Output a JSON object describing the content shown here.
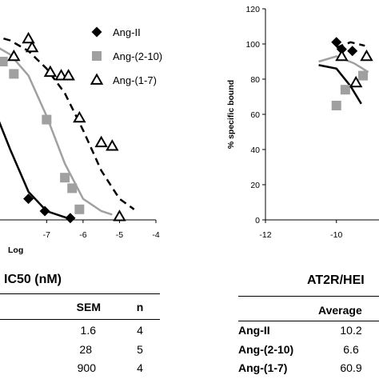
{
  "chart_data": [
    {
      "type": "scatter",
      "xlabel": "Log",
      "ylabel": "",
      "xlim": [
        -8.5,
        -4
      ],
      "ylim": [
        0,
        120
      ],
      "x_ticks": [
        "-7",
        "-6",
        "-5",
        "-4"
      ],
      "grid": false,
      "legend_position": "top-right",
      "series": [
        {
          "name": "Ang-II",
          "marker": "diamond",
          "color": "#000000",
          "line": "solid",
          "line_color": "#000000",
          "points": [
            [
              -7.5,
              12
            ],
            [
              -7.05,
              5
            ],
            [
              -6.35,
              1
            ]
          ],
          "curve": [
            [
              -8.5,
              66
            ],
            [
              -8,
              40
            ],
            [
              -7.5,
              16
            ],
            [
              -7,
              5
            ],
            [
              -6.5,
              1.5
            ],
            [
              -6.3,
              0.5
            ]
          ]
        },
        {
          "name": "Ang-(2-10)",
          "marker": "square",
          "color": "#a0a0a0",
          "line": "solid",
          "line_color": "#a0a0a0",
          "points": [
            [
              -8.2,
              90
            ],
            [
              -7.9,
              83
            ],
            [
              -7.0,
              57
            ],
            [
              -6.5,
              24
            ],
            [
              -6.3,
              18
            ],
            [
              -6.1,
              6
            ]
          ],
          "curve": [
            [
              -8.5,
              100
            ],
            [
              -8,
              94
            ],
            [
              -7.5,
              82
            ],
            [
              -7,
              59
            ],
            [
              -6.5,
              32
            ],
            [
              -6,
              12
            ],
            [
              -5.5,
              5
            ],
            [
              -5.2,
              3
            ]
          ]
        },
        {
          "name": "Ang-(1-7)",
          "marker": "triangle",
          "color": "#000000",
          "line": "dashed",
          "line_color": "#000000",
          "points": [
            [
              -7.9,
              93
            ],
            [
              -7.5,
              103
            ],
            [
              -7.4,
              98
            ],
            [
              -6.9,
              84
            ],
            [
              -6.6,
              82
            ],
            [
              -6.4,
              82
            ],
            [
              -6.1,
              58
            ],
            [
              -5.5,
              44
            ],
            [
              -5.2,
              42
            ],
            [
              -5.0,
              2
            ]
          ],
          "curve": [
            [
              -8.5,
              105
            ],
            [
              -8,
              102
            ],
            [
              -7.5,
              96
            ],
            [
              -7,
              86
            ],
            [
              -6.5,
              72
            ],
            [
              -6,
              51
            ],
            [
              -5.5,
              28
            ],
            [
              -5,
              12
            ],
            [
              -4.6,
              6
            ]
          ]
        }
      ]
    },
    {
      "type": "scatter",
      "xlabel": "",
      "ylabel": "% specific bound",
      "xlim": [
        -12,
        -8.8
      ],
      "ylim": [
        0,
        120
      ],
      "x_ticks": [
        "-12",
        "-10"
      ],
      "y_ticks": [
        "0",
        "20",
        "40",
        "60",
        "80",
        "100",
        "120"
      ],
      "grid": false,
      "series": [
        {
          "name": "Ang-II",
          "marker": "diamond",
          "color": "#000000",
          "line": "solid",
          "line_color": "#000000",
          "points": [
            [
              -10.0,
              101
            ],
            [
              -9.85,
              97
            ],
            [
              -9.55,
              96
            ]
          ],
          "curve": [
            [
              -10.5,
              88
            ],
            [
              -10,
              86
            ],
            [
              -9.6,
              76
            ],
            [
              -9.3,
              66
            ]
          ]
        },
        {
          "name": "Ang-(2-10)",
          "marker": "square",
          "color": "#a0a0a0",
          "line": "solid",
          "line_color": "#a0a0a0",
          "points": [
            [
              -10.0,
              65
            ],
            [
              -9.75,
              74
            ],
            [
              -9.25,
              82
            ]
          ],
          "curve": [
            [
              -10.5,
              90
            ],
            [
              -10,
              93
            ],
            [
              -9.5,
              89
            ],
            [
              -9.1,
              84
            ]
          ]
        },
        {
          "name": "Ang-(1-7)",
          "marker": "triangle",
          "color": "#000000",
          "line": "dashed",
          "line_color": "#000000",
          "points": [
            [
              -9.85,
              93
            ],
            [
              -9.45,
              78
            ],
            [
              -9.15,
              93
            ]
          ],
          "curve": [
            [
              -10,
              98
            ],
            [
              -9.6,
              101
            ],
            [
              -9.2,
              99
            ]
          ]
        }
      ]
    }
  ],
  "left_table": {
    "title": "IC50 (nM)",
    "headers": [
      "SEM",
      "n"
    ],
    "rows": [
      {
        "sem": "1.6",
        "n": "4"
      },
      {
        "sem": "28",
        "n": "5"
      },
      {
        "sem": "900",
        "n": "4"
      }
    ]
  },
  "right_table": {
    "title": "AT2R/HEI",
    "headers": [
      "Average"
    ],
    "rows": [
      {
        "label": "Ang-II",
        "average": "10.2"
      },
      {
        "label": "Ang-(2-10)",
        "average": "6.6"
      },
      {
        "label": "Ang-(1-7)",
        "average": "60.9"
      }
    ]
  }
}
